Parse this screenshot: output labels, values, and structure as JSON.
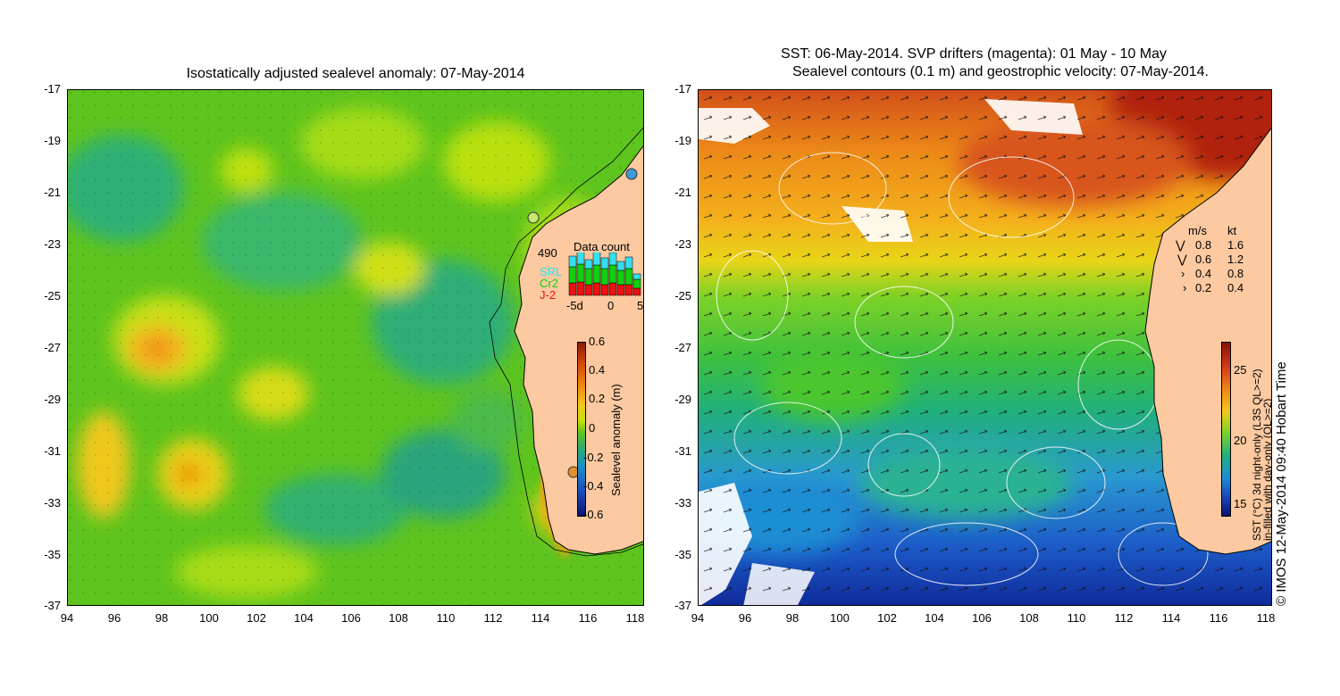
{
  "left": {
    "title": "Isostatically adjusted sealevel anomaly: 07-May-2014",
    "colorbar_label": "Sealevel anomaly (m)",
    "colorbar_ticks": [
      "0.6",
      "0.4",
      "0.2",
      "0",
      "-0.2",
      "-0.4",
      "-0.6"
    ],
    "data_count": {
      "title": "Data count",
      "count": "490",
      "legend": [
        "SRL",
        "Cr2",
        "J-2"
      ],
      "legend_colors": [
        "#33e0f0",
        "#10d010",
        "#ee1111"
      ],
      "xticks": [
        "-5d",
        "0",
        "5"
      ]
    }
  },
  "right": {
    "title_line1": "SST: 06-May-2014. SVP drifters (magenta): 01 May - 10 May",
    "title_line2": "Sealevel contours (0.1 m) and geostrophic velocity: 07-May-2014.",
    "colorbar_ticks": [
      "25",
      "20",
      "15"
    ],
    "colorbar_label1": "SST (°C) 3d night-only (L3S QL>=2)",
    "colorbar_label2": "in-filled with day-only (QL>=2)",
    "credit": "© IMOS 12-May-2014 09:40 Hobart Time",
    "speed_legend": {
      "header": [
        "m/s",
        "kt"
      ],
      "rows": [
        [
          "0.8",
          "1.6"
        ],
        [
          "0.6",
          "1.2"
        ],
        [
          "0.4",
          "0.8"
        ],
        [
          "0.2",
          "0.4"
        ]
      ]
    }
  },
  "axes": {
    "x_ticks": [
      "94",
      "96",
      "98",
      "100",
      "102",
      "104",
      "106",
      "108",
      "110",
      "112",
      "114",
      "116",
      "118"
    ],
    "y_ticks": [
      "-17",
      "-19",
      "-21",
      "-23",
      "-25",
      "-27",
      "-29",
      "-31",
      "-33",
      "-35",
      "-37"
    ]
  },
  "colors": {
    "land": "#fcc9a0",
    "sla_base": "#5fc61e",
    "sst_warm": "#c02a10",
    "sst_cool": "#1e7ad8"
  }
}
